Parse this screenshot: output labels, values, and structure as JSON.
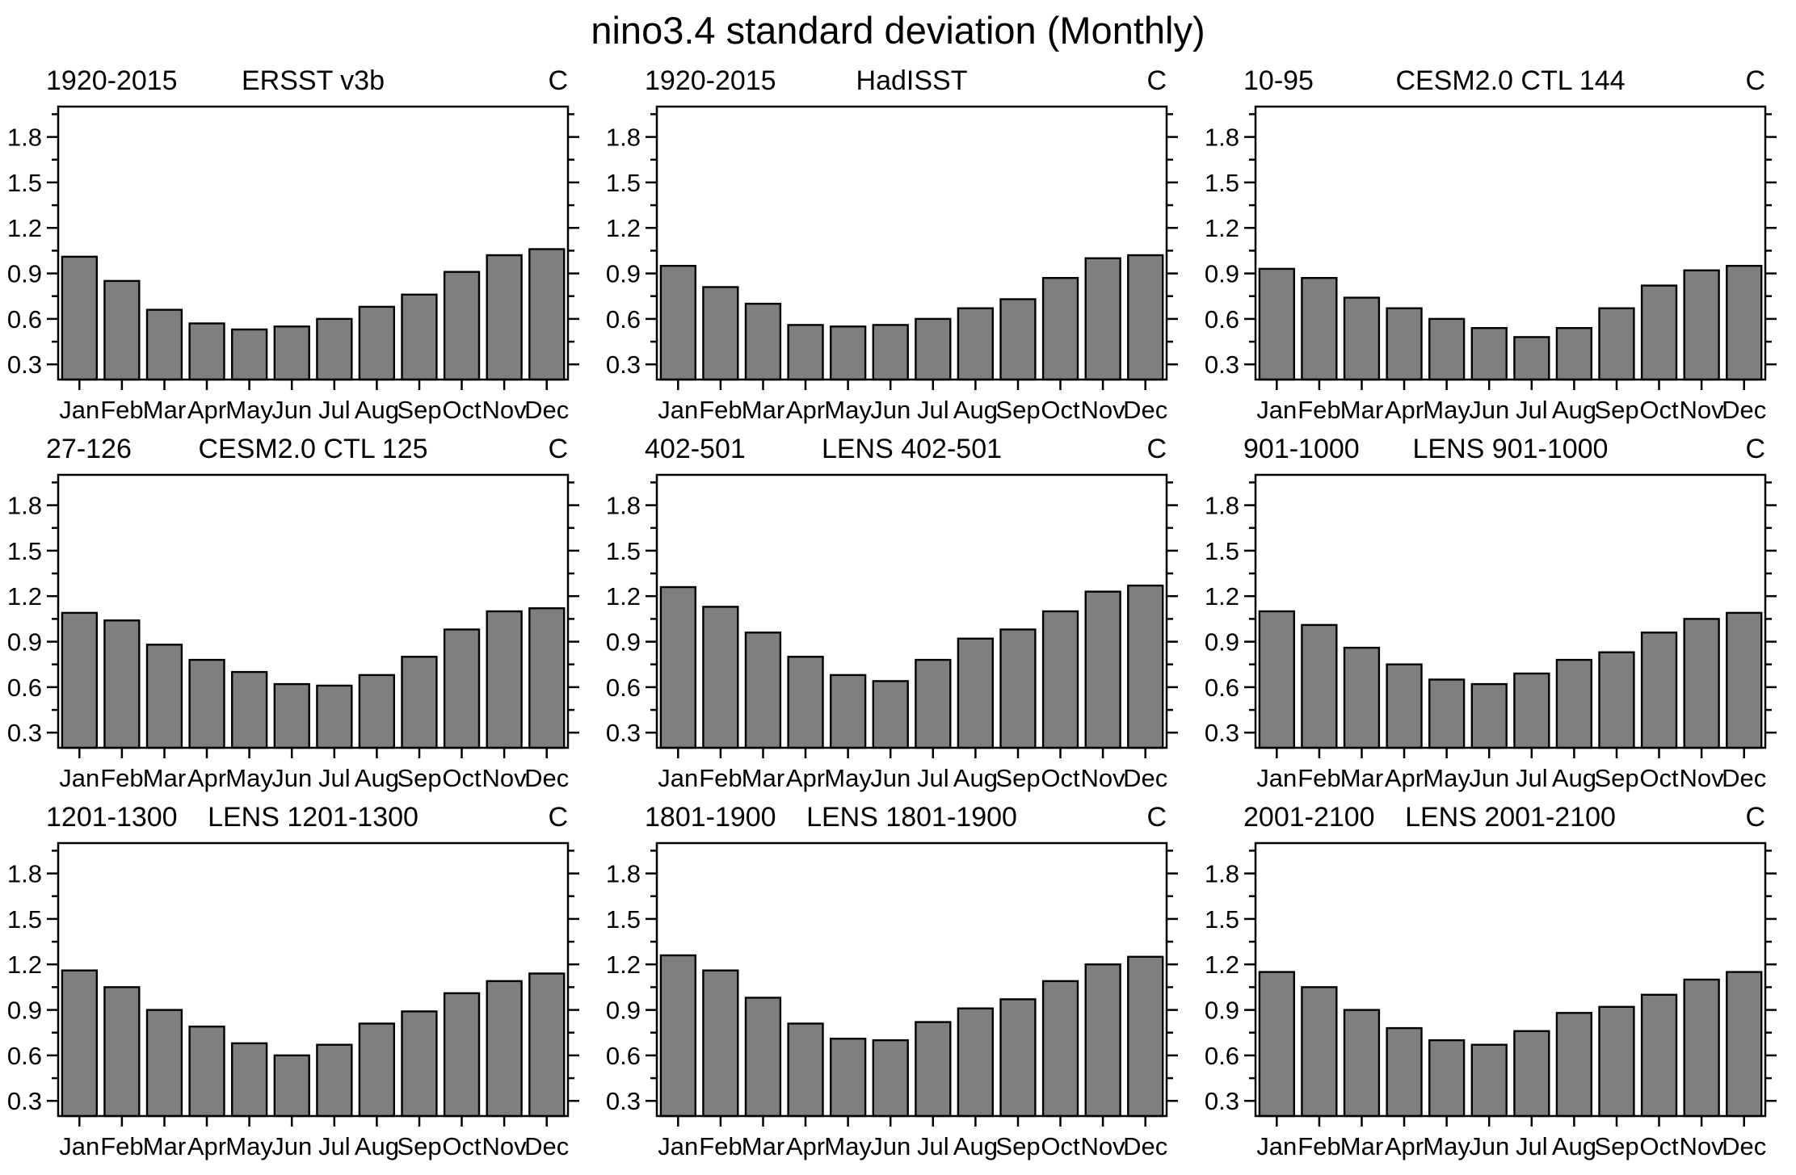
{
  "page": {
    "title": "nino3.4 standard deviation (Monthly)"
  },
  "style": {
    "bar_color": "#7f7f7f",
    "bar_edge_color": "#000000",
    "axis_color": "#000000"
  },
  "chart_data": [
    {
      "type": "bar",
      "period_label": "1920-2015",
      "title": "ERSST v3b",
      "unit_label": "C",
      "categories": [
        "Jan",
        "Feb",
        "Mar",
        "Apr",
        "May",
        "Jun",
        "Jul",
        "Aug",
        "Sep",
        "Oct",
        "Nov",
        "Dec"
      ],
      "values": [
        1.01,
        0.85,
        0.66,
        0.57,
        0.53,
        0.55,
        0.6,
        0.68,
        0.76,
        0.91,
        1.02,
        1.06
      ],
      "ylim": [
        0.2,
        2.0
      ],
      "yticks": [
        0.3,
        0.6,
        0.9,
        1.2,
        1.5,
        1.8
      ],
      "minor_yticks": [
        0.45,
        0.75,
        1.05,
        1.35,
        1.65,
        1.95
      ],
      "grid": false,
      "legend": "none"
    },
    {
      "type": "bar",
      "period_label": "1920-2015",
      "title": "HadISST",
      "unit_label": "C",
      "categories": [
        "Jan",
        "Feb",
        "Mar",
        "Apr",
        "May",
        "Jun",
        "Jul",
        "Aug",
        "Sep",
        "Oct",
        "Nov",
        "Dec"
      ],
      "values": [
        0.95,
        0.81,
        0.7,
        0.56,
        0.55,
        0.56,
        0.6,
        0.67,
        0.73,
        0.87,
        1.0,
        1.02
      ],
      "ylim": [
        0.2,
        2.0
      ],
      "yticks": [
        0.3,
        0.6,
        0.9,
        1.2,
        1.5,
        1.8
      ],
      "minor_yticks": [
        0.45,
        0.75,
        1.05,
        1.35,
        1.65,
        1.95
      ],
      "grid": false,
      "legend": "none"
    },
    {
      "type": "bar",
      "period_label": "10-95",
      "title": "CESM2.0 CTL 144",
      "unit_label": "C",
      "categories": [
        "Jan",
        "Feb",
        "Mar",
        "Apr",
        "May",
        "Jun",
        "Jul",
        "Aug",
        "Sep",
        "Oct",
        "Nov",
        "Dec"
      ],
      "values": [
        0.93,
        0.87,
        0.74,
        0.67,
        0.6,
        0.54,
        0.48,
        0.54,
        0.67,
        0.82,
        0.92,
        0.95
      ],
      "ylim": [
        0.2,
        2.0
      ],
      "yticks": [
        0.3,
        0.6,
        0.9,
        1.2,
        1.5,
        1.8
      ],
      "minor_yticks": [
        0.45,
        0.75,
        1.05,
        1.35,
        1.65,
        1.95
      ],
      "grid": false,
      "legend": "none"
    },
    {
      "type": "bar",
      "period_label": "27-126",
      "title": "CESM2.0 CTL 125",
      "unit_label": "C",
      "categories": [
        "Jan",
        "Feb",
        "Mar",
        "Apr",
        "May",
        "Jun",
        "Jul",
        "Aug",
        "Sep",
        "Oct",
        "Nov",
        "Dec"
      ],
      "values": [
        1.09,
        1.04,
        0.88,
        0.78,
        0.7,
        0.62,
        0.61,
        0.68,
        0.8,
        0.98,
        1.1,
        1.12
      ],
      "ylim": [
        0.2,
        2.0
      ],
      "yticks": [
        0.3,
        0.6,
        0.9,
        1.2,
        1.5,
        1.8
      ],
      "minor_yticks": [
        0.45,
        0.75,
        1.05,
        1.35,
        1.65,
        1.95
      ],
      "grid": false,
      "legend": "none"
    },
    {
      "type": "bar",
      "period_label": "402-501",
      "title": "LENS 402-501",
      "unit_label": "C",
      "categories": [
        "Jan",
        "Feb",
        "Mar",
        "Apr",
        "May",
        "Jun",
        "Jul",
        "Aug",
        "Sep",
        "Oct",
        "Nov",
        "Dec"
      ],
      "values": [
        1.26,
        1.13,
        0.96,
        0.8,
        0.68,
        0.64,
        0.78,
        0.92,
        0.98,
        1.1,
        1.23,
        1.27
      ],
      "ylim": [
        0.2,
        2.0
      ],
      "yticks": [
        0.3,
        0.6,
        0.9,
        1.2,
        1.5,
        1.8
      ],
      "minor_yticks": [
        0.45,
        0.75,
        1.05,
        1.35,
        1.65,
        1.95
      ],
      "grid": false,
      "legend": "none"
    },
    {
      "type": "bar",
      "period_label": "901-1000",
      "title": "LENS 901-1000",
      "unit_label": "C",
      "categories": [
        "Jan",
        "Feb",
        "Mar",
        "Apr",
        "May",
        "Jun",
        "Jul",
        "Aug",
        "Sep",
        "Oct",
        "Nov",
        "Dec"
      ],
      "values": [
        1.1,
        1.01,
        0.86,
        0.75,
        0.65,
        0.62,
        0.69,
        0.78,
        0.83,
        0.96,
        1.05,
        1.09
      ],
      "ylim": [
        0.2,
        2.0
      ],
      "yticks": [
        0.3,
        0.6,
        0.9,
        1.2,
        1.5,
        1.8
      ],
      "minor_yticks": [
        0.45,
        0.75,
        1.05,
        1.35,
        1.65,
        1.95
      ],
      "grid": false,
      "legend": "none"
    },
    {
      "type": "bar",
      "period_label": "1201-1300",
      "title": "LENS 1201-1300",
      "unit_label": "C",
      "categories": [
        "Jan",
        "Feb",
        "Mar",
        "Apr",
        "May",
        "Jun",
        "Jul",
        "Aug",
        "Sep",
        "Oct",
        "Nov",
        "Dec"
      ],
      "values": [
        1.16,
        1.05,
        0.9,
        0.79,
        0.68,
        0.6,
        0.67,
        0.81,
        0.89,
        1.01,
        1.09,
        1.14
      ],
      "ylim": [
        0.2,
        2.0
      ],
      "yticks": [
        0.3,
        0.6,
        0.9,
        1.2,
        1.5,
        1.8
      ],
      "minor_yticks": [
        0.45,
        0.75,
        1.05,
        1.35,
        1.65,
        1.95
      ],
      "grid": false,
      "legend": "none"
    },
    {
      "type": "bar",
      "period_label": "1801-1900",
      "title": "LENS 1801-1900",
      "unit_label": "C",
      "categories": [
        "Jan",
        "Feb",
        "Mar",
        "Apr",
        "May",
        "Jun",
        "Jul",
        "Aug",
        "Sep",
        "Oct",
        "Nov",
        "Dec"
      ],
      "values": [
        1.26,
        1.16,
        0.98,
        0.81,
        0.71,
        0.7,
        0.82,
        0.91,
        0.97,
        1.09,
        1.2,
        1.25
      ],
      "ylim": [
        0.2,
        2.0
      ],
      "yticks": [
        0.3,
        0.6,
        0.9,
        1.2,
        1.5,
        1.8
      ],
      "minor_yticks": [
        0.45,
        0.75,
        1.05,
        1.35,
        1.65,
        1.95
      ],
      "grid": false,
      "legend": "none"
    },
    {
      "type": "bar",
      "period_label": "2001-2100",
      "title": "LENS 2001-2100",
      "unit_label": "C",
      "categories": [
        "Jan",
        "Feb",
        "Mar",
        "Apr",
        "May",
        "Jun",
        "Jul",
        "Aug",
        "Sep",
        "Oct",
        "Nov",
        "Dec"
      ],
      "values": [
        1.15,
        1.05,
        0.9,
        0.78,
        0.7,
        0.67,
        0.76,
        0.88,
        0.92,
        1.0,
        1.1,
        1.15
      ],
      "ylim": [
        0.2,
        2.0
      ],
      "yticks": [
        0.3,
        0.6,
        0.9,
        1.2,
        1.5,
        1.8
      ],
      "minor_yticks": [
        0.45,
        0.75,
        1.05,
        1.35,
        1.65,
        1.95
      ],
      "grid": false,
      "legend": "none"
    }
  ]
}
